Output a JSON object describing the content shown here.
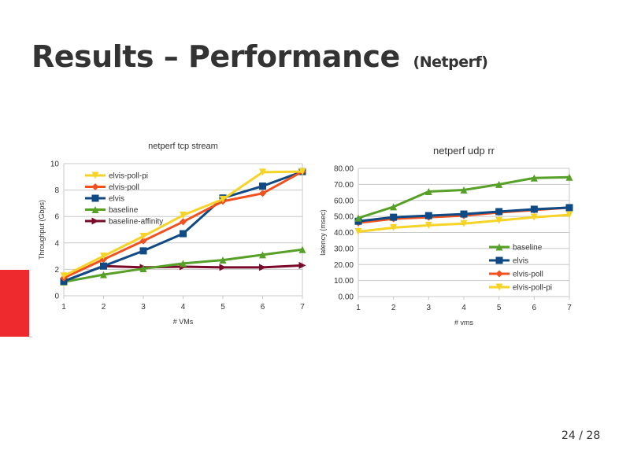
{
  "slide": {
    "title": "Results – Performance",
    "subtitle": "(Netperf)",
    "page_number": "24 / 28",
    "accent_color": "#ee2a2f"
  },
  "chart_data": [
    {
      "type": "line",
      "title": "netperf tcp stream",
      "xlabel": "# VMs",
      "ylabel": "Throughput (Gbps)",
      "x": [
        1,
        2,
        3,
        4,
        5,
        6,
        7
      ],
      "ylim": [
        0,
        10
      ],
      "yticks": [
        "0",
        "2",
        "4",
        "6",
        "8",
        "10"
      ],
      "grid": true,
      "legend": "top-left",
      "series": [
        {
          "name": "elvis-poll-pi",
          "color": "#f5d327",
          "marker": "triangle-down",
          "values": [
            1.5,
            3.0,
            4.5,
            6.1,
            7.3,
            9.35,
            9.4
          ]
        },
        {
          "name": "elvis-poll",
          "color": "#f0511e",
          "marker": "diamond",
          "values": [
            1.35,
            2.75,
            4.15,
            5.6,
            7.15,
            7.75,
            9.4
          ]
        },
        {
          "name": "elvis",
          "color": "#0f4a84",
          "marker": "square",
          "values": [
            1.1,
            2.25,
            3.4,
            4.7,
            7.4,
            8.3,
            9.4
          ]
        },
        {
          "name": "baseline",
          "color": "#57a028",
          "marker": "triangle-up",
          "values": [
            1.05,
            1.6,
            2.05,
            2.45,
            2.7,
            3.1,
            3.5
          ]
        },
        {
          "name": "baseline-affinity",
          "color": "#7b0a2a",
          "marker": "triangle-right",
          "values": [
            1.1,
            2.25,
            2.15,
            2.2,
            2.15,
            2.15,
            2.3
          ]
        }
      ]
    },
    {
      "type": "line",
      "title": "netperf udp rr",
      "xlabel": "# vms",
      "ylabel": "latency (msec)",
      "x": [
        1,
        2,
        3,
        4,
        5,
        6,
        7
      ],
      "ylim": [
        0,
        80
      ],
      "yticks": [
        "0.00",
        "10.00",
        "20.00",
        "30.00",
        "40.00",
        "50.00",
        "60.00",
        "70.00",
        "80.00"
      ],
      "grid": true,
      "legend": "bottom-right",
      "series": [
        {
          "name": "baseline",
          "color": "#57a028",
          "marker": "triangle-up",
          "values": [
            49,
            56,
            65.5,
            66.5,
            70,
            74,
            74.5
          ]
        },
        {
          "name": "elvis",
          "color": "#0f4a84",
          "marker": "square",
          "values": [
            47,
            49.5,
            50.5,
            51.5,
            53,
            54.5,
            55.5
          ]
        },
        {
          "name": "elvis-poll",
          "color": "#f0511e",
          "marker": "diamond",
          "values": [
            46,
            48.5,
            49.5,
            50.5,
            52.5,
            54,
            55.5
          ]
        },
        {
          "name": "elvis-poll-pi",
          "color": "#f5d327",
          "marker": "triangle-down",
          "values": [
            40.5,
            43,
            44.5,
            45.5,
            47.5,
            49.5,
            51
          ]
        }
      ]
    }
  ]
}
